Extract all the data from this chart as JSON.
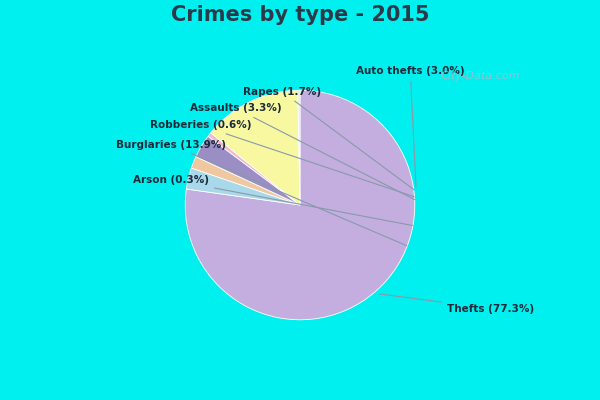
{
  "title": "Crimes by type - 2015",
  "slices": [
    {
      "label": "Thefts (77.3%)",
      "value": 77.3,
      "color": "#C4AEE0"
    },
    {
      "label": "Auto thefts (3.0%)",
      "value": 3.0,
      "color": "#A8D8EA"
    },
    {
      "label": "Rapes (1.7%)",
      "value": 1.7,
      "color": "#F0C8A0"
    },
    {
      "label": "Assaults (3.3%)",
      "value": 3.3,
      "color": "#9B8EC4"
    },
    {
      "label": "Robberies (0.6%)",
      "value": 0.6,
      "color": "#F5B8C8"
    },
    {
      "label": "Burglaries (13.9%)",
      "value": 13.9,
      "color": "#F8F8A0"
    },
    {
      "label": "Arson (0.3%)",
      "value": 0.3,
      "color": "#D8F0C8"
    }
  ],
  "background_cyan": "#00EFEF",
  "background_green": "#D4EDD4",
  "title_fontsize": 15,
  "figsize": [
    6.0,
    4.0
  ],
  "dpi": 100,
  "title_color": "#2A3A4A",
  "label_color": "#1A2A3A",
  "watermark": "City-Data.com"
}
